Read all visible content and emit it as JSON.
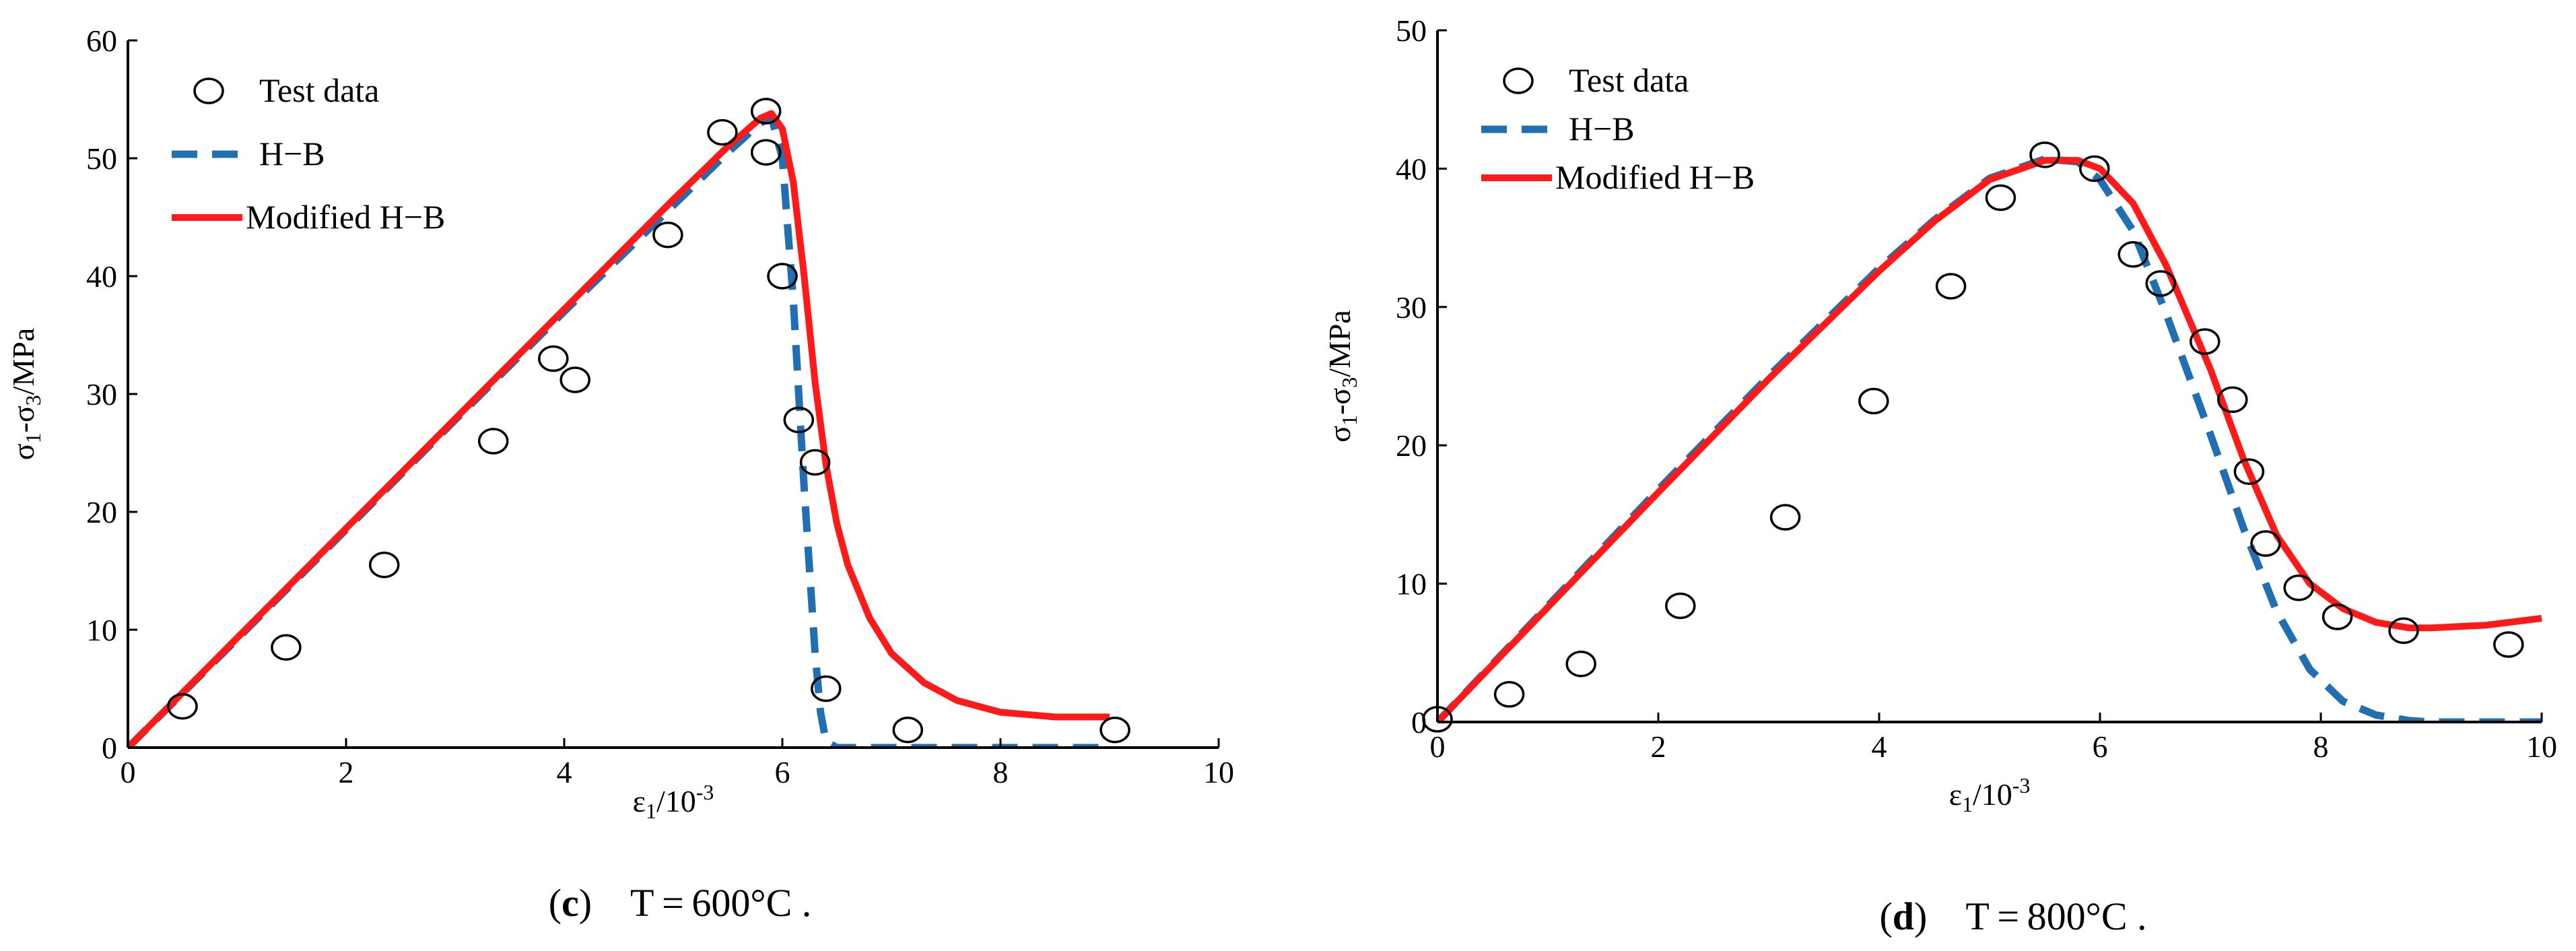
{
  "colors": {
    "hb": "#1f6fb2",
    "modified": "#ff1a1a",
    "axis": "#000000",
    "marker": "#000000",
    "background": "#ffffff"
  },
  "chart_data": [
    {
      "type": "line",
      "panel_label": "(c)",
      "caption_letter": "c",
      "caption_text": "T = 600°C .",
      "xlabel": "ε1/10-3",
      "ylabel": "σ1-σ3/MPa",
      "xlim": [
        0,
        10
      ],
      "ylim": [
        0,
        60
      ],
      "x_ticks": [
        0,
        2,
        4,
        6,
        8,
        10
      ],
      "y_ticks": [
        0,
        10,
        20,
        30,
        40,
        50,
        60
      ],
      "grid": false,
      "legend_position": "top-left",
      "legend": [
        "Test data",
        "H−B",
        "Modified H−B"
      ],
      "series": [
        {
          "name": "Test data",
          "kind": "scatter",
          "x": [
            0.5,
            1.45,
            2.35,
            3.35,
            3.9,
            4.1,
            4.95,
            5.45,
            5.85,
            5.85,
            6.0,
            6.15,
            6.3,
            6.4,
            7.15,
            9.05
          ],
          "y": [
            3.5,
            8.5,
            15.5,
            26.0,
            33.0,
            31.2,
            43.5,
            52.2,
            54.0,
            50.5,
            40.0,
            27.8,
            24.2,
            5.0,
            1.5,
            1.5
          ]
        },
        {
          "name": "H−B",
          "kind": "line",
          "x": [
            0,
            1,
            2,
            3,
            4,
            5,
            5.5,
            5.8,
            5.9,
            6.0,
            6.1,
            6.2,
            6.3,
            6.35,
            6.4,
            6.5,
            7,
            8,
            9
          ],
          "y": [
            0,
            9.2,
            18.5,
            27.8,
            37.0,
            46.0,
            50.5,
            53.0,
            53.5,
            50.0,
            38.0,
            22.0,
            8.0,
            3.0,
            0.5,
            0,
            0,
            0,
            0
          ]
        },
        {
          "name": "Modified H−B",
          "kind": "line",
          "x": [
            0,
            1,
            2,
            3,
            4,
            5,
            5.5,
            5.8,
            5.9,
            6.0,
            6.1,
            6.2,
            6.3,
            6.4,
            6.5,
            6.6,
            6.8,
            7.0,
            7.3,
            7.6,
            8.0,
            8.5,
            9.0
          ],
          "y": [
            0,
            9.3,
            18.6,
            27.9,
            37.2,
            46.5,
            51.0,
            53.4,
            53.8,
            52.5,
            48.0,
            40.0,
            31.0,
            24.0,
            19.0,
            15.5,
            11.0,
            8.0,
            5.5,
            4.0,
            3.0,
            2.6,
            2.6
          ]
        }
      ]
    },
    {
      "type": "line",
      "panel_label": "(d)",
      "caption_letter": "d",
      "caption_text": "T = 800°C .",
      "xlabel": "ε1/10-3",
      "ylabel": "σ1-σ3/MPa",
      "xlim": [
        0,
        10
      ],
      "ylim": [
        0,
        50
      ],
      "x_ticks": [
        0,
        2,
        4,
        6,
        8,
        10
      ],
      "y_ticks": [
        0,
        10,
        20,
        30,
        40,
        50
      ],
      "grid": false,
      "legend_position": "top-left",
      "legend": [
        "Test data",
        "H−B",
        "Modified H−B"
      ],
      "series": [
        {
          "name": "Test data",
          "kind": "scatter",
          "x": [
            0.0,
            0.65,
            1.3,
            2.2,
            3.15,
            3.95,
            4.65,
            5.1,
            5.5,
            5.95,
            6.3,
            6.55,
            6.95,
            7.2,
            7.35,
            7.5,
            7.8,
            8.15,
            8.75,
            9.7
          ],
          "y": [
            0.2,
            2.0,
            4.2,
            8.4,
            14.8,
            23.2,
            31.5,
            37.9,
            41.0,
            40.0,
            33.8,
            31.7,
            27.5,
            23.3,
            18.1,
            12.9,
            9.7,
            7.6,
            6.6,
            5.6
          ]
        },
        {
          "name": "H−B",
          "kind": "line",
          "x": [
            0,
            1,
            2,
            3,
            4,
            4.5,
            5.0,
            5.5,
            5.8,
            6.0,
            6.3,
            6.6,
            7.0,
            7.3,
            7.6,
            7.9,
            8.2,
            8.5,
            8.8,
            9.0,
            9.5,
            10
          ],
          "y": [
            0,
            8.4,
            16.8,
            25.0,
            32.8,
            36.3,
            39.3,
            40.7,
            40.5,
            39.2,
            35.5,
            29.5,
            20.8,
            14.0,
            8.0,
            3.8,
            1.5,
            0.5,
            0.1,
            0,
            0,
            0
          ]
        },
        {
          "name": "Modified H−B",
          "kind": "line",
          "x": [
            0,
            1,
            2,
            3,
            4,
            4.5,
            5.0,
            5.5,
            5.8,
            6.0,
            6.3,
            6.6,
            7.0,
            7.3,
            7.6,
            7.9,
            8.2,
            8.5,
            8.8,
            9.0,
            9.5,
            10
          ],
          "y": [
            0,
            8.3,
            16.6,
            24.8,
            32.6,
            36.2,
            39.2,
            40.6,
            40.6,
            40.0,
            37.5,
            33.0,
            25.5,
            19.0,
            13.5,
            10.0,
            8.2,
            7.2,
            6.8,
            6.8,
            7.0,
            7.5
          ]
        }
      ]
    }
  ]
}
